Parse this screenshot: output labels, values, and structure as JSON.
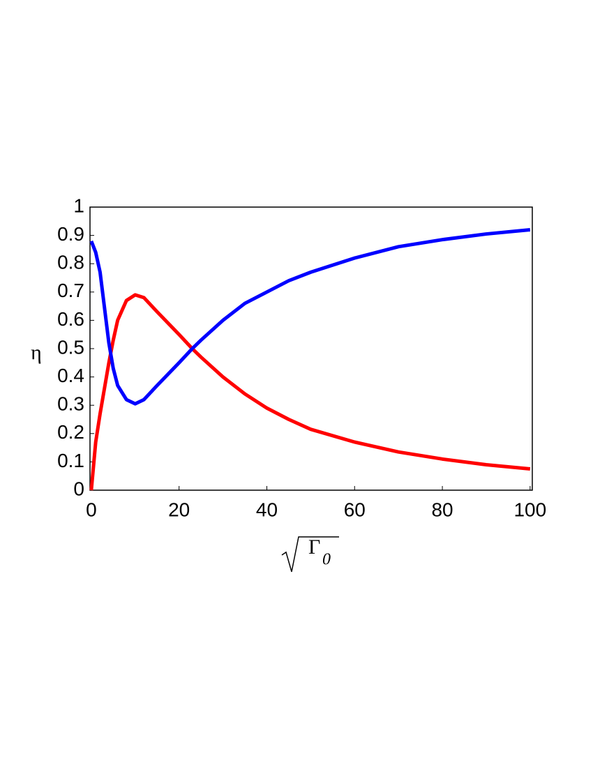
{
  "chart_data": {
    "type": "line",
    "x": [
      0,
      1,
      2,
      4,
      5,
      6,
      8,
      10,
      12,
      15,
      20,
      23,
      25,
      30,
      35,
      40,
      45,
      50,
      60,
      70,
      80,
      90,
      100
    ],
    "series": [
      {
        "color": "#ff0000",
        "values": [
          0,
          0.17,
          0.27,
          0.45,
          0.53,
          0.6,
          0.67,
          0.69,
          0.68,
          0.63,
          0.55,
          0.5,
          0.47,
          0.4,
          0.34,
          0.29,
          0.25,
          0.215,
          0.17,
          0.135,
          0.11,
          0.09,
          0.075
        ]
      },
      {
        "color": "#0000ff",
        "values": [
          0.88,
          0.84,
          0.77,
          0.52,
          0.43,
          0.37,
          0.32,
          0.305,
          0.32,
          0.37,
          0.45,
          0.5,
          0.53,
          0.6,
          0.66,
          0.7,
          0.74,
          0.77,
          0.82,
          0.86,
          0.885,
          0.905,
          0.92
        ]
      }
    ],
    "xlim": [
      -0.3,
      100.5
    ],
    "ylim": [
      0,
      1
    ],
    "xticks": [
      0,
      20,
      40,
      60,
      80,
      100
    ],
    "yticks": [
      0,
      0.1,
      0.2,
      0.3,
      0.4,
      0.5,
      0.6,
      0.7,
      0.8,
      0.9,
      1
    ],
    "ylabel": "η",
    "xlabel_base": "Γ",
    "xlabel_subscript": "0",
    "grid": false
  }
}
